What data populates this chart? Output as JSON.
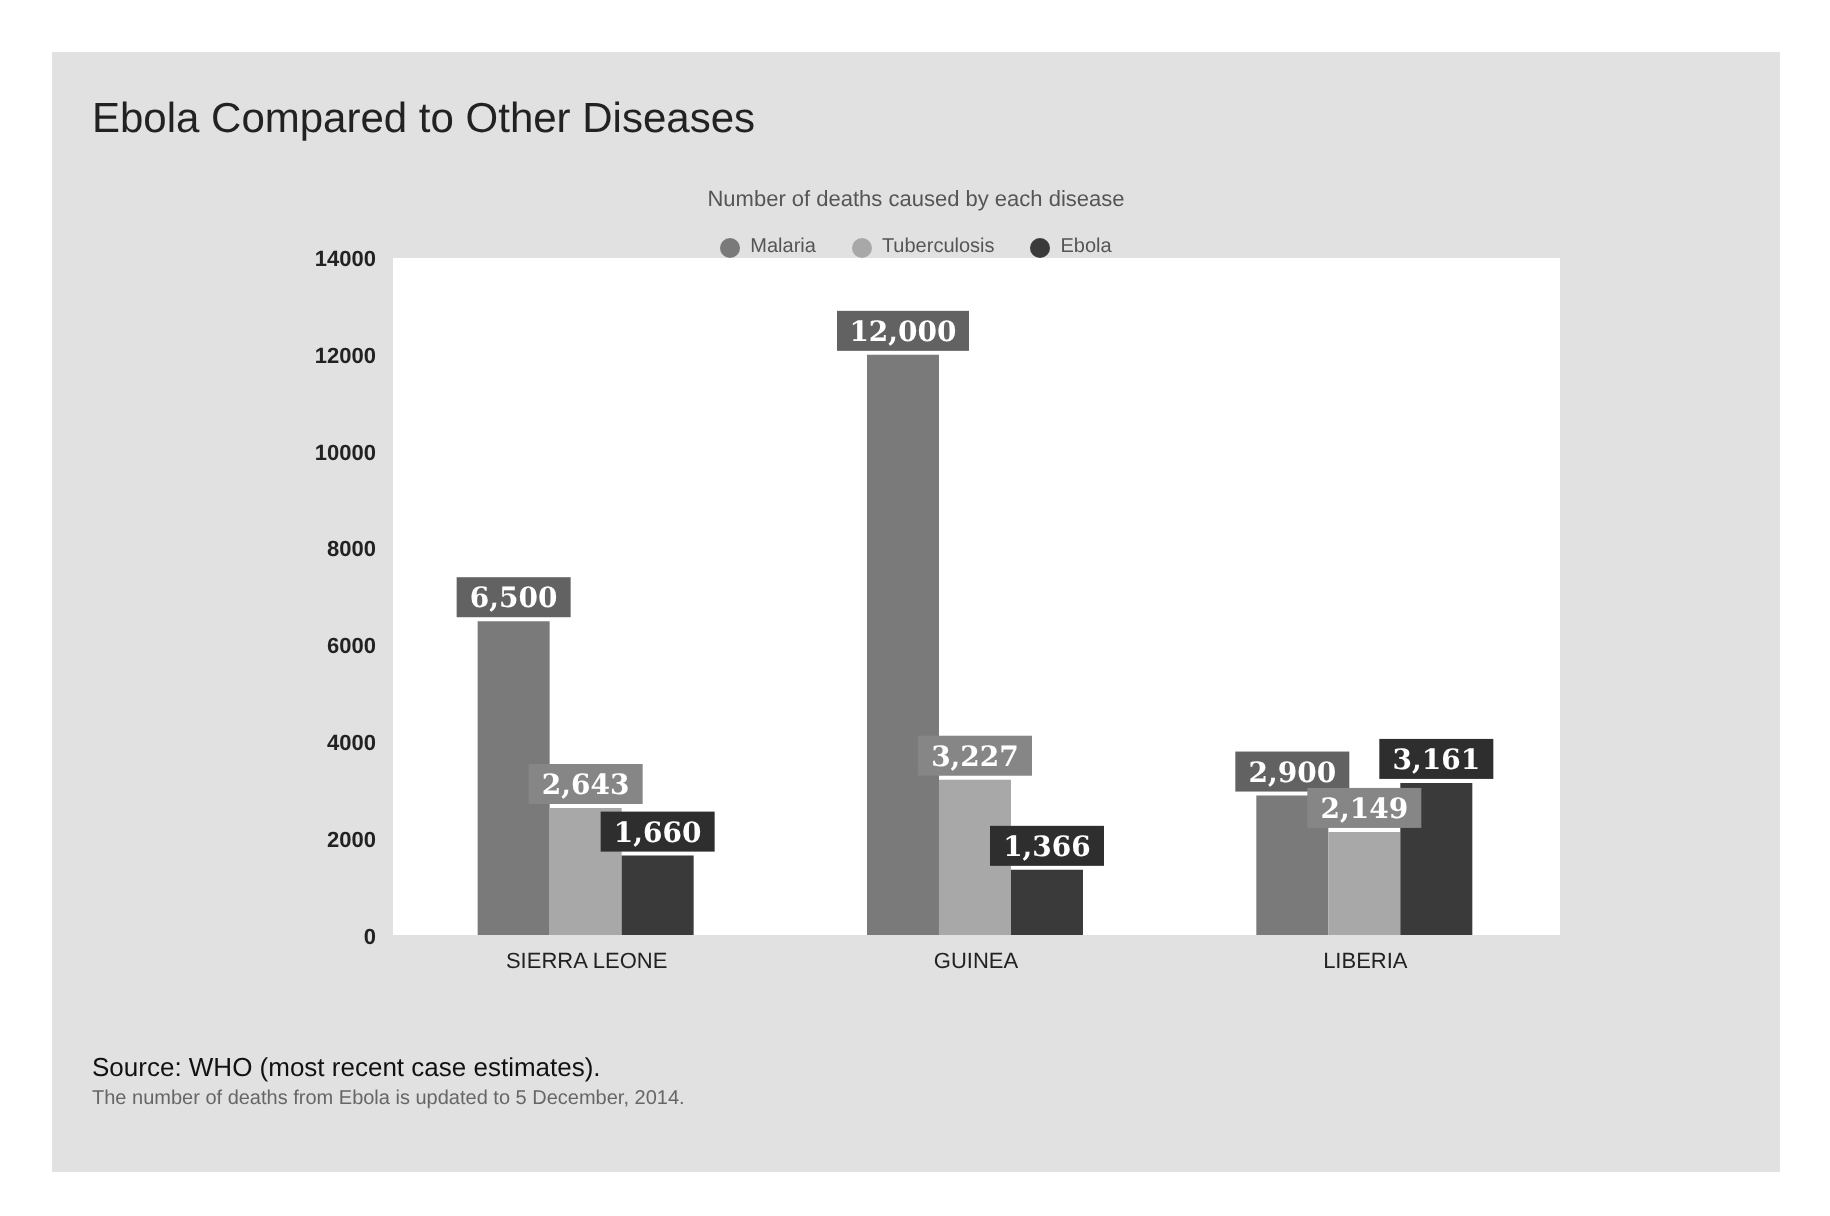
{
  "chart_data": {
    "type": "bar",
    "title": "Ebola Compared to Other Diseases",
    "legend_title": "Number of deaths caused by each disease",
    "categories": [
      "SIERRA LEONE",
      "GUINEA",
      "LIBERIA"
    ],
    "series": [
      {
        "name": "Malaria",
        "color": "#7a7a7a",
        "values": [
          6500,
          12000,
          2900
        ],
        "value_labels": [
          "6,500",
          "12,000",
          "2,900"
        ]
      },
      {
        "name": "Tuberculosis",
        "color": "#a8a8a8",
        "values": [
          2643,
          3227,
          2149
        ],
        "value_labels": [
          "2,643",
          "3,227",
          "2,149"
        ]
      },
      {
        "name": "Ebola",
        "color": "#3a3a3a",
        "values": [
          1660,
          1366,
          3161
        ],
        "value_labels": [
          "1,660",
          "1,366",
          "3,161"
        ]
      }
    ],
    "ylim": [
      0,
      14000
    ],
    "yticks": [
      0,
      2000,
      4000,
      6000,
      8000,
      10000,
      12000,
      14000
    ],
    "grid": false,
    "legend": "top",
    "annotations": [
      "Source: WHO (most recent case estimates).",
      "The number of deaths from Ebola is updated to 5 December, 2014."
    ]
  }
}
